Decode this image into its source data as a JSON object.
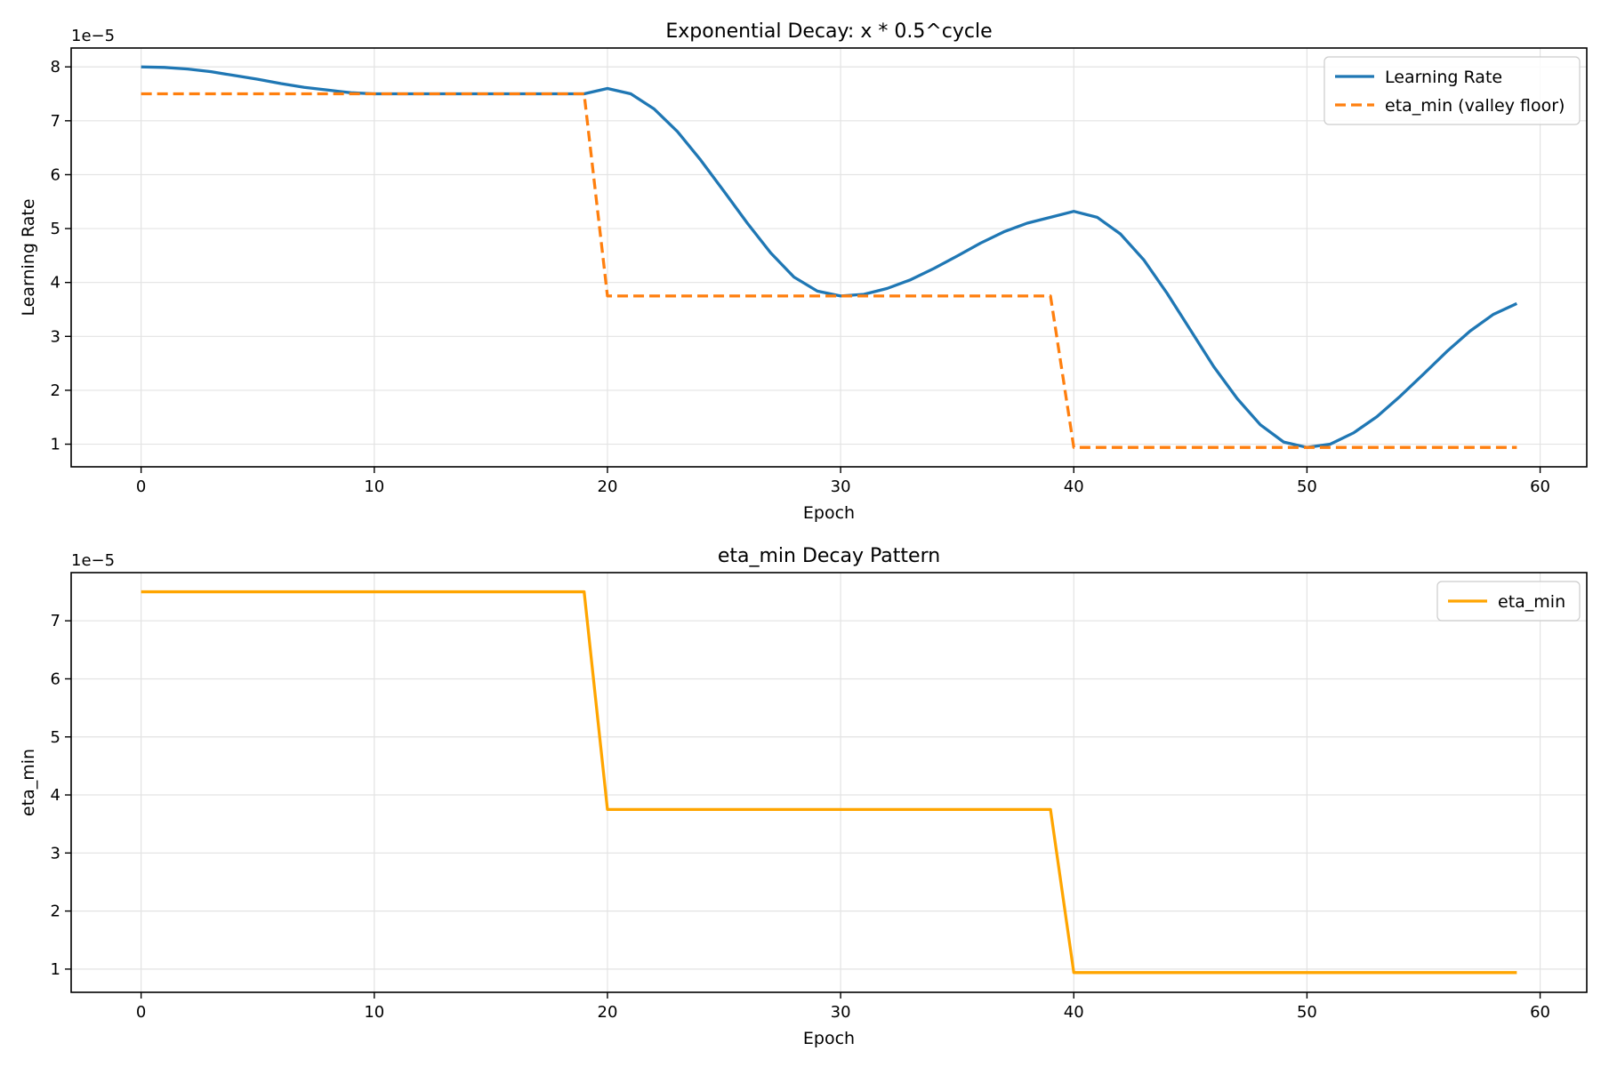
{
  "chart_data": [
    {
      "type": "line",
      "title": "Exponential Decay: x * 0.5^cycle",
      "xlabel": "Epoch",
      "ylabel": "Learning Rate",
      "offset_text": "1e−5",
      "xlim": [
        -3,
        62
      ],
      "ylim": [
        0.58,
        8.35
      ],
      "xticks": [
        0,
        10,
        20,
        30,
        40,
        50,
        60
      ],
      "yticks": [
        1,
        2,
        3,
        4,
        5,
        6,
        7,
        8
      ],
      "grid": true,
      "legend_position": "upper-right",
      "series": [
        {
          "name": "Learning Rate",
          "color": "#1f77b4",
          "style": "solid",
          "x": [
            0,
            1,
            2,
            3,
            4,
            5,
            6,
            7,
            8,
            9,
            10,
            11,
            12,
            13,
            14,
            15,
            16,
            17,
            18,
            19,
            20,
            21,
            22,
            23,
            24,
            25,
            26,
            27,
            28,
            29,
            30,
            31,
            32,
            33,
            34,
            35,
            36,
            37,
            38,
            39,
            40,
            41,
            42,
            43,
            44,
            45,
            46,
            47,
            48,
            49,
            50,
            51,
            52,
            53,
            54,
            55,
            56,
            57,
            58,
            59
          ],
          "y": [
            8.0,
            7.99,
            7.96,
            7.91,
            7.84,
            7.77,
            7.69,
            7.62,
            7.57,
            7.52,
            7.5,
            7.5,
            7.5,
            7.5,
            7.5,
            7.5,
            7.5,
            7.5,
            7.5,
            7.5,
            7.6,
            7.5,
            7.22,
            6.8,
            6.27,
            5.69,
            5.1,
            4.55,
            4.1,
            3.84,
            3.75,
            3.78,
            3.89,
            4.05,
            4.26,
            4.49,
            4.73,
            4.94,
            5.1,
            5.21,
            5.32,
            5.21,
            4.9,
            4.42,
            3.8,
            3.12,
            2.44,
            1.85,
            1.36,
            1.04,
            0.94,
            1.0,
            1.21,
            1.51,
            1.89,
            2.3,
            2.72,
            3.1,
            3.41,
            3.61
          ]
        },
        {
          "name": "eta_min (valley floor)",
          "color": "#ff7f0e",
          "style": "dashed",
          "x": [
            0,
            19,
            20,
            39,
            40,
            59
          ],
          "y": [
            7.5,
            7.5,
            3.75,
            3.75,
            0.94,
            0.94
          ]
        }
      ]
    },
    {
      "type": "line",
      "title": "eta_min Decay Pattern",
      "xlabel": "Epoch",
      "ylabel": "eta_min",
      "offset_text": "1e−5",
      "xlim": [
        -3,
        62
      ],
      "ylim": [
        0.6,
        7.83
      ],
      "xticks": [
        0,
        10,
        20,
        30,
        40,
        50,
        60
      ],
      "yticks": [
        1,
        2,
        3,
        4,
        5,
        6,
        7
      ],
      "grid": true,
      "legend_position": "upper-right",
      "series": [
        {
          "name": "eta_min",
          "color": "#ffa500",
          "style": "solid",
          "x": [
            0,
            19,
            20,
            39,
            40,
            59
          ],
          "y": [
            7.5,
            7.5,
            3.75,
            3.75,
            0.94,
            0.94
          ]
        }
      ]
    }
  ]
}
